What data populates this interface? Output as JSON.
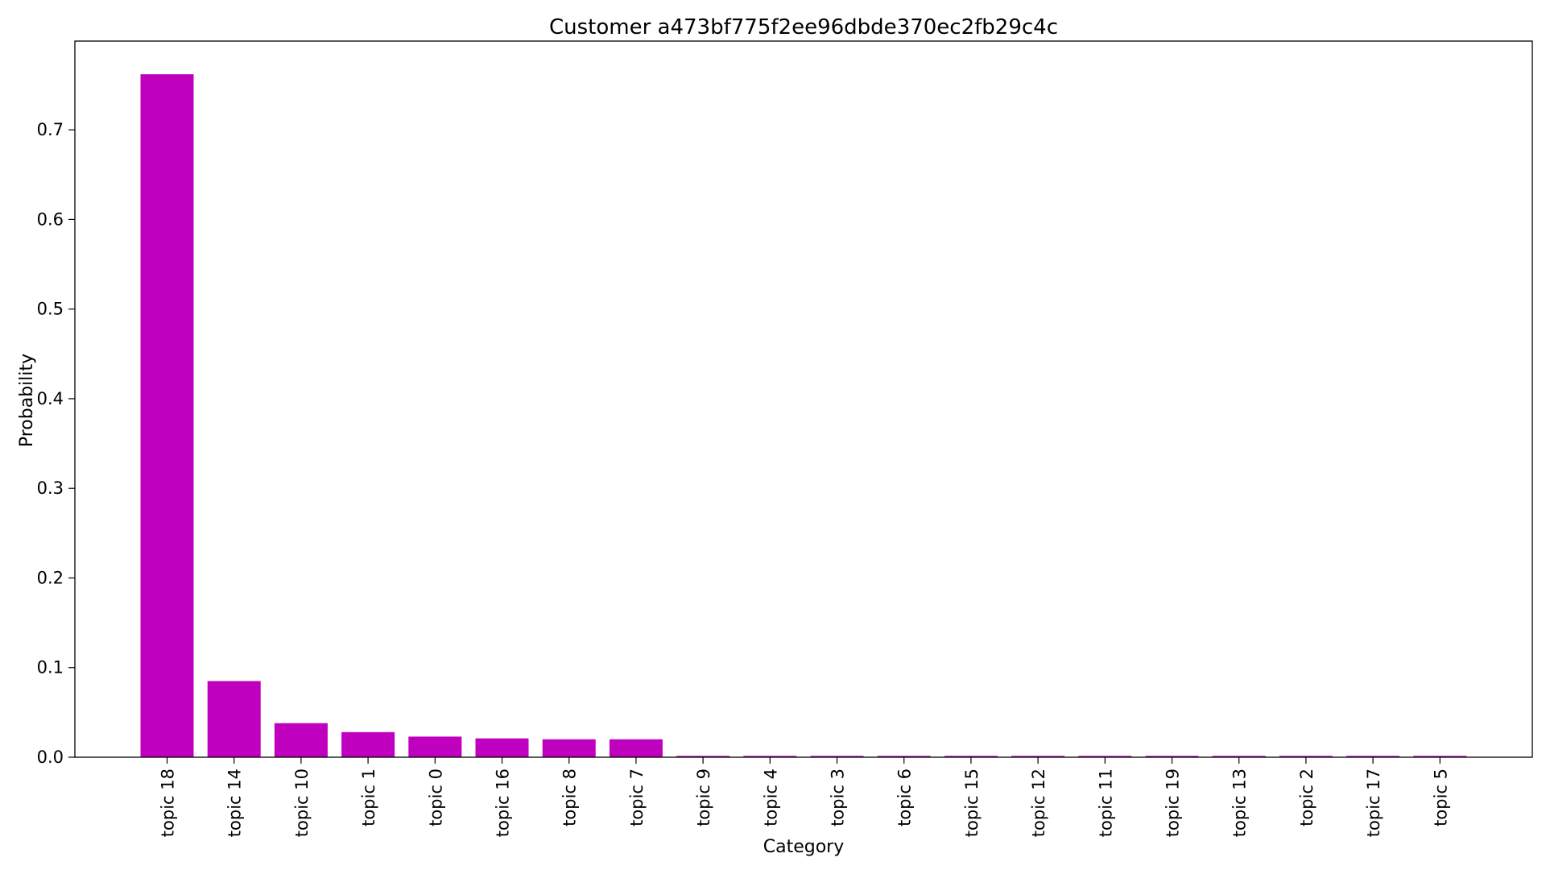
{
  "chart_data": {
    "type": "bar",
    "title": "Customer a473bf775f2ee96dbde370ec2fb29c4c",
    "xlabel": "Category",
    "ylabel": "Probability",
    "categories": [
      "topic 18",
      "topic 14",
      "topic 10",
      "topic 1",
      "topic 0",
      "topic 16",
      "topic 8",
      "topic 7",
      "topic 9",
      "topic 4",
      "topic 3",
      "topic 6",
      "topic 15",
      "topic 12",
      "topic 11",
      "topic 19",
      "topic 13",
      "topic 2",
      "topic 17",
      "topic 5"
    ],
    "values": [
      0.762,
      0.085,
      0.038,
      0.028,
      0.023,
      0.021,
      0.02,
      0.02,
      0.0015,
      0.0015,
      0.0015,
      0.0015,
      0.0015,
      0.0015,
      0.0015,
      0.0015,
      0.0015,
      0.0015,
      0.0015,
      0.0015
    ],
    "ylim": [
      0,
      0.799
    ],
    "yticks": [
      0.0,
      0.1,
      0.2,
      0.3,
      0.4,
      0.5,
      0.6,
      0.7
    ],
    "ytick_labels": [
      "0.0",
      "0.1",
      "0.2",
      "0.3",
      "0.4",
      "0.5",
      "0.6",
      "0.7"
    ],
    "grid": false,
    "legend": "none",
    "bar_color": "#bf00bf"
  }
}
